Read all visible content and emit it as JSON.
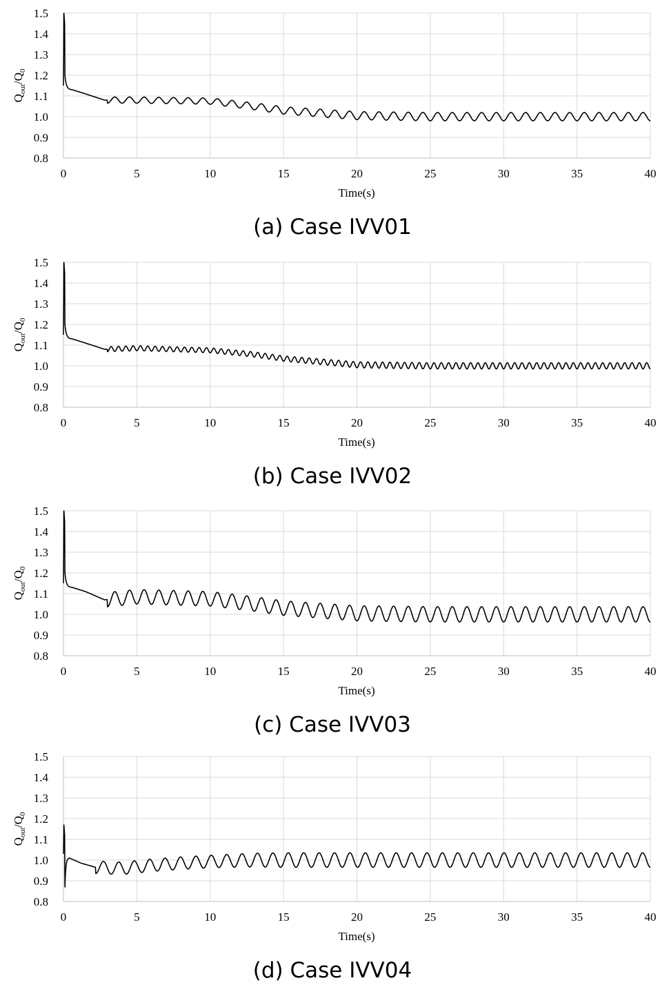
{
  "chart_data": [
    {
      "type": "line",
      "caption": "(a) Case IVV01",
      "xlabel": "Time(s)",
      "ylabel": {
        "q1": "Q",
        "sub1": "out",
        "slash": "/",
        "q2": "Q",
        "sub2": "0"
      },
      "xlim": [
        0,
        40
      ],
      "ylim": [
        0.8,
        1.5
      ],
      "xticks": [
        0,
        5,
        10,
        15,
        20,
        25,
        30,
        35,
        40
      ],
      "yticks": [
        "0.8",
        "0.9",
        "1.0",
        "1.1",
        "1.2",
        "1.3",
        "1.4",
        "1.5"
      ],
      "grid": true,
      "series": [
        {
          "color": "#000000",
          "initial_peak": 1.5,
          "decay_end_value": 1.15,
          "baseline_points": [
            [
              0.6,
              1.13
            ],
            [
              1.5,
              1.11
            ],
            [
              2.8,
              1.08
            ],
            [
              5,
              1.08
            ],
            [
              10,
              1.075
            ],
            [
              13,
              1.05
            ],
            [
              15,
              1.03
            ],
            [
              20,
              1.005
            ],
            [
              25,
              1.0
            ],
            [
              40,
              1.0
            ]
          ],
          "oscillation_start": 3.0,
          "period": 1.0,
          "amplitude_points": [
            [
              3,
              0.015
            ],
            [
              10,
              0.015
            ],
            [
              15,
              0.018
            ],
            [
              22,
              0.02
            ],
            [
              40,
              0.02
            ]
          ]
        }
      ]
    },
    {
      "type": "line",
      "caption": "(b) Case IVV02",
      "xlabel": "Time(s)",
      "ylabel": {
        "q1": "Q",
        "sub1": "out",
        "slash": "/",
        "q2": "Q",
        "sub2": "0"
      },
      "xlim": [
        0,
        40
      ],
      "ylim": [
        0.8,
        1.5
      ],
      "xticks": [
        0,
        5,
        10,
        15,
        20,
        25,
        30,
        35,
        40
      ],
      "yticks": [
        "0.8",
        "0.9",
        "1.0",
        "1.1",
        "1.2",
        "1.3",
        "1.4",
        "1.5"
      ],
      "grid": true,
      "series": [
        {
          "color": "#000000",
          "initial_peak": 1.5,
          "decay_end_value": 1.15,
          "baseline_points": [
            [
              0.6,
              1.13
            ],
            [
              1.5,
              1.11
            ],
            [
              2.8,
              1.08
            ],
            [
              5,
              1.085
            ],
            [
              10,
              1.075
            ],
            [
              13,
              1.055
            ],
            [
              15,
              1.035
            ],
            [
              20,
              1.005
            ],
            [
              25,
              1.0
            ],
            [
              40,
              1.0
            ]
          ],
          "oscillation_start": 3.0,
          "period": 0.5,
          "amplitude_points": [
            [
              3,
              0.012
            ],
            [
              10,
              0.012
            ],
            [
              15,
              0.013
            ],
            [
              22,
              0.015
            ],
            [
              40,
              0.015
            ]
          ]
        }
      ]
    },
    {
      "type": "line",
      "caption": "(c) Case IVV03",
      "xlabel": "Time(s)",
      "ylabel": {
        "q1": "Q",
        "sub1": "out",
        "slash": "/",
        "q2": "Q",
        "sub2": "0"
      },
      "xlim": [
        0,
        40
      ],
      "ylim": [
        0.8,
        1.5
      ],
      "xticks": [
        0,
        5,
        10,
        15,
        20,
        25,
        30,
        35,
        40
      ],
      "yticks": [
        "0.8",
        "0.9",
        "1.0",
        "1.1",
        "1.2",
        "1.3",
        "1.4",
        "1.5"
      ],
      "grid": true,
      "series": [
        {
          "color": "#000000",
          "initial_peak": 1.5,
          "decay_end_value": 1.15,
          "baseline_points": [
            [
              0.6,
              1.13
            ],
            [
              1.5,
              1.11
            ],
            [
              2.8,
              1.07
            ],
            [
              5,
              1.085
            ],
            [
              10,
              1.075
            ],
            [
              13,
              1.05
            ],
            [
              15,
              1.03
            ],
            [
              20,
              1.005
            ],
            [
              25,
              1.0
            ],
            [
              40,
              1.0
            ]
          ],
          "oscillation_start": 3.0,
          "period": 1.0,
          "amplitude_points": [
            [
              3,
              0.035
            ],
            [
              10,
              0.035
            ],
            [
              15,
              0.035
            ],
            [
              22,
              0.037
            ],
            [
              40,
              0.037
            ]
          ]
        }
      ]
    },
    {
      "type": "line",
      "caption": "(d) Case IVV04",
      "xlabel": "Time(s)",
      "ylabel": {
        "q1": "Q",
        "sub1": "out",
        "slash": "/",
        "q2": "Q",
        "sub2": "0"
      },
      "xlim": [
        0,
        40
      ],
      "ylim": [
        0.8,
        1.5
      ],
      "xticks": [
        0,
        5,
        10,
        15,
        20,
        25,
        30,
        35,
        40
      ],
      "yticks": [
        "0.8",
        "0.9",
        "1.0",
        "1.1",
        "1.2",
        "1.3",
        "1.4",
        "1.5"
      ],
      "grid": true,
      "series": [
        {
          "color": "#000000",
          "initial_peak": 1.17,
          "decay_end_value": 1.03,
          "baseline_points": [
            [
              0.4,
              1.01
            ],
            [
              1.2,
              0.985
            ],
            [
              2.2,
              0.965
            ],
            [
              4,
              0.96
            ],
            [
              6,
              0.975
            ],
            [
              8,
              0.985
            ],
            [
              10,
              0.993
            ],
            [
              13,
              1.0
            ],
            [
              40,
              1.0
            ]
          ],
          "oscillation_start": 2.2,
          "period": 1.05,
          "amplitude_points": [
            [
              2.2,
              0.03
            ],
            [
              10,
              0.03
            ],
            [
              15,
              0.035
            ],
            [
              40,
              0.035
            ]
          ]
        }
      ]
    }
  ]
}
